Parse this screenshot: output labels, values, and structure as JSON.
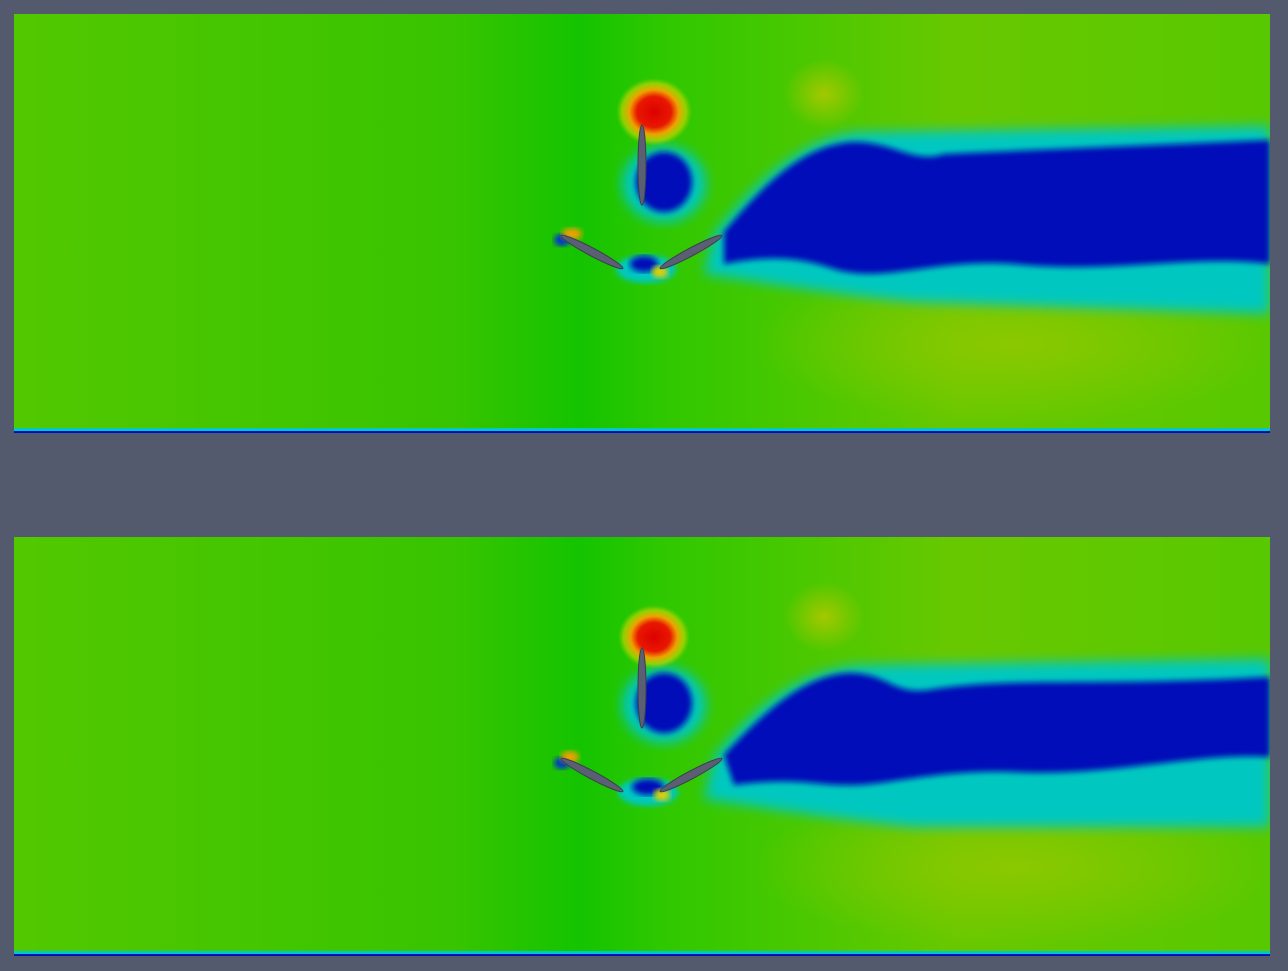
{
  "figure": {
    "panels": [
      {
        "id": "top"
      },
      {
        "id": "bottom"
      }
    ]
  },
  "colors": {
    "background": "#545a6e",
    "field_base": "#33c800",
    "freestream_light": "#7dc400",
    "wake": "#0010b8",
    "wake_edge": "#00c8c8",
    "high": "#e00000",
    "mid_high": "#f0e000",
    "foil": "#5a5f73"
  }
}
